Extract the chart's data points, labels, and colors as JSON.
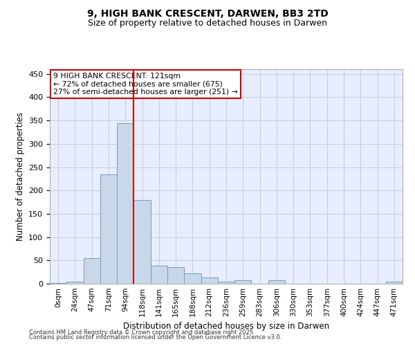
{
  "title1": "9, HIGH BANK CRESCENT, DARWEN, BB3 2TD",
  "title2": "Size of property relative to detached houses in Darwen",
  "xlabel": "Distribution of detached houses by size in Darwen",
  "ylabel": "Number of detached properties",
  "bar_labels": [
    "0sqm",
    "24sqm",
    "47sqm",
    "71sqm",
    "94sqm",
    "118sqm",
    "141sqm",
    "165sqm",
    "188sqm",
    "212sqm",
    "236sqm",
    "259sqm",
    "283sqm",
    "306sqm",
    "330sqm",
    "353sqm",
    "377sqm",
    "400sqm",
    "424sqm",
    "447sqm",
    "471sqm"
  ],
  "bar_values": [
    2,
    4,
    55,
    235,
    345,
    180,
    38,
    35,
    22,
    13,
    5,
    7,
    0,
    8,
    0,
    0,
    0,
    0,
    0,
    0,
    4
  ],
  "bar_color": "#c8d8ea",
  "bar_edge_color": "#7799bb",
  "vline_x": 5,
  "vline_color": "#cc0000",
  "annotation_text": "9 HIGH BANK CRESCENT: 121sqm\n← 72% of detached houses are smaller (675)\n27% of semi-detached houses are larger (251) →",
  "annotation_box_color": "#ffffff",
  "annotation_box_edge": "#cc0000",
  "ylim": [
    0,
    460
  ],
  "yticks": [
    0,
    50,
    100,
    150,
    200,
    250,
    300,
    350,
    400,
    450
  ],
  "grid_color": "#c0cce0",
  "bg_color": "#e8eeff",
  "footer1": "Contains HM Land Registry data © Crown copyright and database right 2025.",
  "footer2": "Contains public sector information licensed under the Open Government Licence v3.0."
}
